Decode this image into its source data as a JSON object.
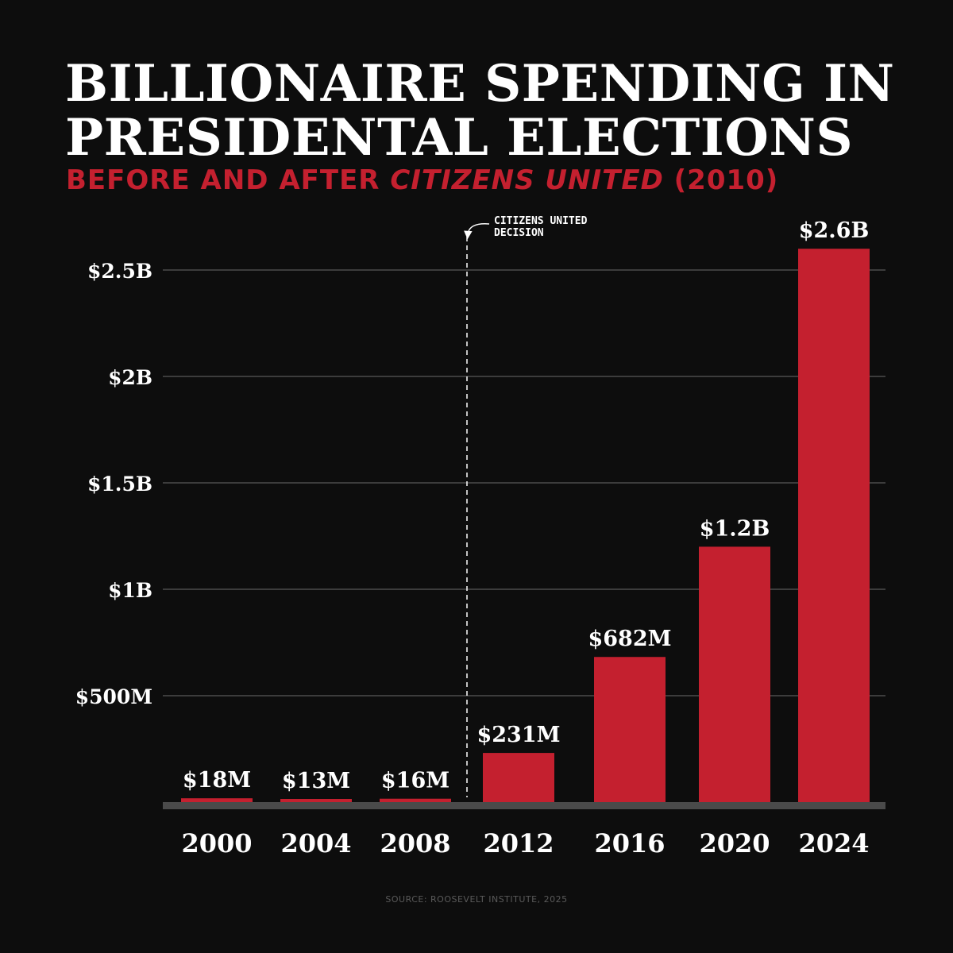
{
  "header": {
    "title_line1": "BILLIONAIRE SPENDING IN",
    "title_line2": "PRESIDENTAL ELECTIONS",
    "subtitle_before": "BEFORE AND AFTER ",
    "subtitle_emph": "CITIZENS UNITED",
    "subtitle_after": " (2010)"
  },
  "colors": {
    "background": "#0d0d0d",
    "bar": "#c4202f",
    "title": "#ffffff",
    "subtitle": "#c4202f",
    "gridline": "#3c3c3c",
    "baseline": "#4a4a4a",
    "source_text": "#5a5a5a"
  },
  "chart_data": {
    "type": "bar",
    "categories": [
      "2000",
      "2004",
      "2008",
      "2012",
      "2016",
      "2020",
      "2024"
    ],
    "values": [
      18000000,
      13000000,
      16000000,
      231000000,
      682000000,
      1200000000,
      2600000000
    ],
    "data_labels": [
      "$18M",
      "$13M",
      "$16M",
      "$231M",
      "$682M",
      "$1.2B",
      "$2.6B"
    ],
    "yticks": [
      500000000,
      1000000000,
      1500000000,
      2000000000,
      2500000000
    ],
    "ytick_labels": [
      "$500M",
      "$1B",
      "$1.5B",
      "$2B",
      "$2.5B"
    ],
    "ylim": [
      0,
      2600000000
    ],
    "grid": true,
    "annotation": {
      "line1": "CITIZENS UNITED",
      "line2": "DECISION",
      "year": 2010,
      "style": "dashed vertical line between 2008 and 2012"
    }
  },
  "footer": {
    "source": "SOURCE: ROOSEVELT INSTITUTE, 2025"
  }
}
